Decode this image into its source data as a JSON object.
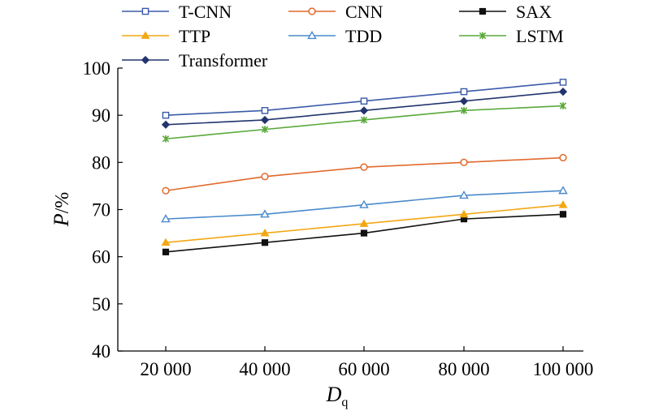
{
  "chart_data": {
    "type": "line",
    "x": [
      "20 000",
      "40 000",
      "60 000",
      "80 000",
      "100 000"
    ],
    "ylim": [
      40,
      100
    ],
    "yticks": [
      40,
      50,
      60,
      70,
      80,
      90,
      100
    ],
    "grid": false,
    "legend_position": "top",
    "xlabel": {
      "main": "D",
      "sub": "q"
    },
    "ylabel": {
      "main": "P",
      "unit": "/%"
    },
    "series": [
      {
        "name": "T-CNN",
        "color": "#3a5aa8",
        "marker": "open-square",
        "values": [
          90,
          91,
          93,
          95,
          97
        ]
      },
      {
        "name": "CNN",
        "color": "#e06a2c",
        "marker": "open-circle",
        "values": [
          74,
          77,
          79,
          80,
          81
        ]
      },
      {
        "name": "SAX",
        "color": "#111111",
        "marker": "filled-square",
        "values": [
          61,
          63,
          65,
          68,
          69
        ]
      },
      {
        "name": "TTP",
        "color": "#f3a712",
        "marker": "filled-triangle",
        "values": [
          63,
          65,
          67,
          69,
          71
        ]
      },
      {
        "name": "TDD",
        "color": "#4a8acb",
        "marker": "open-triangle",
        "values": [
          68,
          69,
          71,
          73,
          74
        ]
      },
      {
        "name": "LSTM",
        "color": "#58a83a",
        "marker": "star",
        "values": [
          85,
          87,
          89,
          91,
          92
        ]
      },
      {
        "name": "Transformer",
        "color": "#22346e",
        "marker": "filled-diamond",
        "values": [
          88,
          89,
          91,
          93,
          95
        ]
      }
    ]
  }
}
